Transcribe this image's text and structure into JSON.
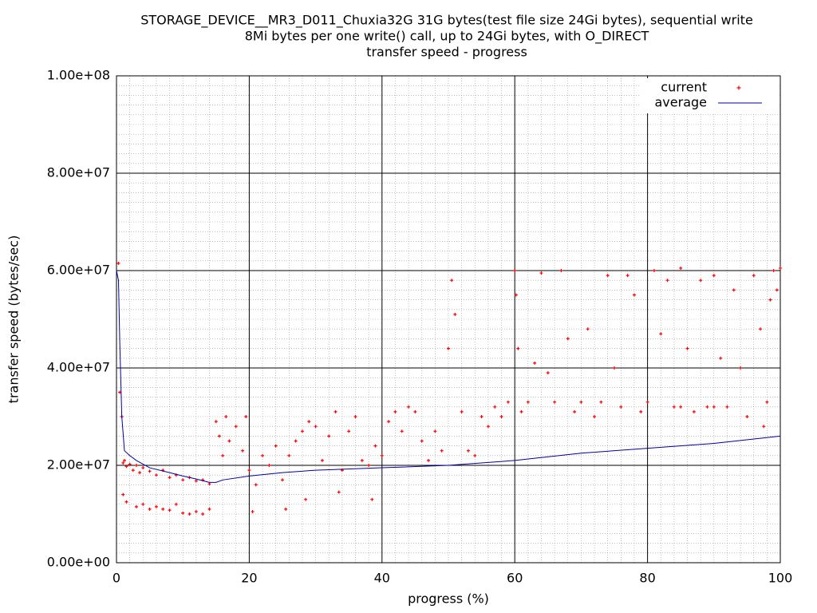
{
  "chart_data": {
    "type": "scatter",
    "title": "STORAGE_DEVICE__MR3_D011_Chuxia32G 31G bytes(test file size 24Gi bytes), sequential write",
    "subtitle": "8Mi bytes per one write() call, up to 24Gi bytes, with O_DIRECT",
    "subtitle2": "transfer speed - progress",
    "xlabel": "progress (%)",
    "ylabel": "transfer speed (bytes/sec)",
    "xlim": [
      0,
      100
    ],
    "xticks": [
      0,
      20,
      40,
      60,
      80,
      100
    ],
    "ylim": [
      0,
      100000000
    ],
    "yticks": [
      {
        "value": 0,
        "label": "0.00e+00"
      },
      {
        "value": 20000000,
        "label": "2.00e+07"
      },
      {
        "value": 40000000,
        "label": "4.00e+07"
      },
      {
        "value": 60000000,
        "label": "6.00e+07"
      },
      {
        "value": 80000000,
        "label": "8.00e+07"
      },
      {
        "value": 100000000,
        "label": "1.00e+08"
      }
    ],
    "grid": true,
    "legend": "top-right",
    "series": [
      {
        "name": "current",
        "color": "#ff0000",
        "kind": "points",
        "x": [
          0.3,
          0.5,
          0.8,
          1,
          1.2,
          1.5,
          2,
          2.5,
          3,
          3.5,
          4,
          5,
          6,
          7,
          8,
          9,
          10,
          11,
          12,
          13,
          14,
          1,
          1.5,
          3,
          4,
          5,
          6,
          7,
          8,
          9,
          10,
          11,
          12,
          13,
          14,
          15,
          15.5,
          16,
          16.5,
          17,
          18,
          19,
          19.5,
          20,
          20.5,
          21,
          22,
          23,
          24,
          25,
          25.5,
          26,
          27,
          28,
          28.5,
          29,
          30,
          31,
          32,
          33,
          33.5,
          34,
          35,
          36,
          37,
          38,
          38.5,
          39,
          40,
          41,
          42,
          43,
          44,
          45,
          46,
          47,
          48,
          49,
          50,
          50.5,
          51,
          52,
          53,
          54,
          55,
          56,
          57,
          58,
          59,
          60,
          60.2,
          60.5,
          61,
          62,
          63,
          64,
          65,
          66,
          67,
          68,
          69,
          70,
          71,
          72,
          73,
          74,
          75,
          76,
          77,
          78,
          79,
          80,
          81,
          82,
          83,
          84,
          85,
          86,
          87,
          88,
          89,
          90,
          91,
          92,
          93,
          94,
          95,
          96,
          97,
          98,
          99,
          100,
          99.5,
          98.5,
          97.5,
          90,
          85
        ],
        "values": [
          61500000,
          35000000,
          30000000,
          20500000,
          21000000,
          19800000,
          20200000,
          19000000,
          20000000,
          18500000,
          19500000,
          18800000,
          18000000,
          19000000,
          17500000,
          18000000,
          17000000,
          17500000,
          16800000,
          17000000,
          16200000,
          14000000,
          12500000,
          11500000,
          12000000,
          11000000,
          11500000,
          11000000,
          10800000,
          12000000,
          10200000,
          10000000,
          10500000,
          10000000,
          11000000,
          29000000,
          26000000,
          22000000,
          30000000,
          25000000,
          28000000,
          23000000,
          30000000,
          19000000,
          10500000,
          16000000,
          22000000,
          20000000,
          24000000,
          17000000,
          11000000,
          22000000,
          25000000,
          27000000,
          13000000,
          29000000,
          28000000,
          21000000,
          26000000,
          31000000,
          14500000,
          19000000,
          27000000,
          30000000,
          21000000,
          20000000,
          13000000,
          24000000,
          22000000,
          29000000,
          31000000,
          27000000,
          32000000,
          31000000,
          25000000,
          21000000,
          27000000,
          23000000,
          44000000,
          58000000,
          51000000,
          31000000,
          23000000,
          22000000,
          30000000,
          28000000,
          32000000,
          30000000,
          33000000,
          60000000,
          55000000,
          44000000,
          31000000,
          33000000,
          41000000,
          59500000,
          39000000,
          33000000,
          60000000,
          46000000,
          31000000,
          33000000,
          48000000,
          30000000,
          33000000,
          59000000,
          40000000,
          32000000,
          59000000,
          55000000,
          31000000,
          33000000,
          60000000,
          47000000,
          58000000,
          32000000,
          60500000,
          44000000,
          31000000,
          58000000,
          32000000,
          59000000,
          42000000,
          32000000,
          56000000,
          40000000,
          30000000,
          59000000,
          48000000,
          33000000,
          60000000,
          60500000,
          56000000,
          54000000,
          28000000,
          32000000,
          32000000
        ]
      },
      {
        "name": "average",
        "color": "#0000a0",
        "kind": "line",
        "x": [
          0,
          0.3,
          0.5,
          0.8,
          1.2,
          2,
          3,
          5,
          8,
          10,
          12,
          14,
          15,
          16,
          20,
          25,
          30,
          40,
          50,
          60,
          70,
          80,
          90,
          100
        ],
        "values": [
          60000000,
          58000000,
          45000000,
          30000000,
          23000000,
          22000000,
          21000000,
          19500000,
          18500000,
          17800000,
          17200000,
          16500000,
          16500000,
          17000000,
          17800000,
          18500000,
          19000000,
          19500000,
          20000000,
          21000000,
          22500000,
          23500000,
          24500000,
          26000000
        ]
      }
    ]
  }
}
